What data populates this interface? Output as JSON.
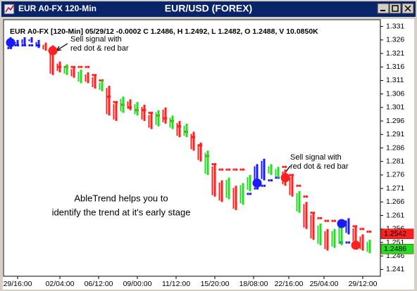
{
  "window": {
    "title": "EUR A0-FX 120-Min"
  },
  "chart_data": {
    "type": "ohlc",
    "title": "EUR/USD (FOREX)",
    "header": "EUR A0-FX [120-Min] 05/29/12  -0.0002 C 1.2486, H 1.2492, L 1.2482, O 1.2488, V 10.0850K",
    "bars": {
      "high": [
        1.327,
        1.326,
        1.327,
        1.327,
        1.326,
        1.325,
        1.324,
        1.318,
        1.317,
        1.316,
        1.315,
        1.314,
        1.313,
        1.311,
        1.309,
        1.303,
        1.305,
        1.304,
        1.303,
        1.302,
        1.299,
        1.3,
        1.301,
        1.298,
        1.296,
        1.295,
        1.292,
        1.288,
        1.285,
        1.28,
        1.274,
        1.275,
        1.272,
        1.273,
        1.276,
        1.28,
        1.282,
        1.28,
        1.279,
        1.278,
        1.276,
        1.27,
        1.266,
        1.262,
        1.258,
        1.256,
        1.256,
        1.258,
        1.26,
        1.257,
        1.254,
        1.252
      ],
      "low": [
        1.325,
        1.324,
        1.324,
        1.325,
        1.323,
        1.322,
        1.313,
        1.314,
        1.313,
        1.312,
        1.31,
        1.31,
        1.308,
        1.307,
        1.298,
        1.296,
        1.299,
        1.3,
        1.298,
        1.296,
        1.293,
        1.294,
        1.295,
        1.293,
        1.29,
        1.29,
        1.285,
        1.281,
        1.276,
        1.268,
        1.266,
        1.267,
        1.263,
        1.265,
        1.27,
        1.272,
        1.274,
        1.276,
        1.275,
        1.272,
        1.268,
        1.262,
        1.256,
        1.252,
        1.25,
        1.248,
        1.249,
        1.25,
        1.254,
        1.251,
        1.248,
        1.247
      ],
      "colors": [
        "#1a1aff",
        "#1a1aff",
        "#1a1aff",
        "#1a1aff",
        "#1a1aff",
        "#ff2020",
        "#ff2020",
        "#ff2020",
        "#22dd22",
        "#ff2020",
        "#22dd22",
        "#ff2020",
        "#ff2020",
        "#22dd22",
        "#ff2020",
        "#ff2020",
        "#22dd22",
        "#ff2020",
        "#22dd22",
        "#ff2020",
        "#ff2020",
        "#22dd22",
        "#ff2020",
        "#22dd22",
        "#ff2020",
        "#22dd22",
        "#ff2020",
        "#ff2020",
        "#22dd22",
        "#ff2020",
        "#ff2020",
        "#22dd22",
        "#ff2020",
        "#22dd22",
        "#22dd22",
        "#1a1aff",
        "#1a1aff",
        "#22dd22",
        "#22dd22",
        "#ff2020",
        "#ff2020",
        "#22dd22",
        "#ff2020",
        "#ff2020",
        "#22dd22",
        "#ff2020",
        "#22dd22",
        "#22dd22",
        "#1a1aff",
        "#ff2020",
        "#ff2020",
        "#22dd22"
      ]
    },
    "series": [
      {
        "color": "#ff2020",
        "values": [
          null,
          null,
          null,
          null,
          null,
          null,
          1.323,
          1.316,
          1.316,
          1.316,
          1.316,
          1.316,
          1.313,
          1.311,
          1.305,
          1.303,
          1.302,
          1.301,
          1.3,
          1.3,
          1.299,
          1.298,
          1.297,
          1.296,
          1.294,
          1.292,
          1.29,
          1.287,
          1.283,
          1.28,
          1.278,
          1.278,
          1.278,
          1.278,
          null,
          null,
          null,
          null,
          null,
          1.279,
          1.276,
          1.272,
          1.268,
          1.262,
          1.26,
          1.259,
          1.259,
          null,
          null,
          1.257,
          1.256,
          1.255
        ]
      },
      {
        "color": "#1a1aff",
        "values": [
          1.323,
          1.324,
          1.324,
          1.324,
          1.324,
          null,
          null,
          null,
          null,
          null,
          null,
          null,
          null,
          null,
          null,
          null,
          null,
          null,
          null,
          null,
          null,
          null,
          null,
          null,
          null,
          null,
          null,
          null,
          null,
          null,
          null,
          null,
          null,
          null,
          1.269,
          1.271,
          1.272,
          1.274,
          1.275,
          null,
          null,
          null,
          null,
          null,
          null,
          null,
          null,
          1.251,
          1.251,
          null,
          null,
          null
        ]
      }
    ],
    "signals": {
      "x": [
        0,
        6,
        35,
        39,
        47,
        49
      ],
      "y": [
        1.325,
        1.322,
        1.273,
        1.275,
        1.258,
        1.25
      ],
      "colors": [
        "#1a1aff",
        "#ff2020",
        "#1a1aff",
        "#ff2020",
        "#1a1aff",
        "#ff2020"
      ]
    },
    "price_marks": {
      "values": [
        1.2542,
        1.2486
      ],
      "colors": [
        "#ff2020",
        "#22dd22"
      ]
    },
    "annotations": [
      [
        "Sell signal with",
        "red dot & red bar"
      ],
      [
        "Sell signal with",
        "red dot & red bar"
      ],
      [
        "AbleTrend helps you to",
        "identify the trend at it's early stage"
      ]
    ],
    "xlim": [
      0,
      52
    ],
    "xticks": [
      {
        "value": 1.5,
        "label": "29/16:00"
      },
      {
        "value": 7.5,
        "label": "02/04:00"
      },
      {
        "value": 13,
        "label": "06/12:00"
      },
      {
        "value": 18.5,
        "label": "09/00:00"
      },
      {
        "value": 24,
        "label": "11/12:00"
      },
      {
        "value": 29.5,
        "label": "15/20:00"
      },
      {
        "value": 35,
        "label": "18/08:00"
      },
      {
        "value": 40,
        "label": "22/16:00"
      },
      {
        "value": 45,
        "label": "25/04:00"
      },
      {
        "value": 50.5,
        "label": "29/12:00"
      }
    ],
    "ylim": [
      1.2385,
      1.3335
    ],
    "yticks": [
      1.331,
      1.326,
      1.321,
      1.316,
      1.311,
      1.306,
      1.301,
      1.296,
      1.291,
      1.286,
      1.281,
      1.276,
      1.271,
      1.266,
      1.261,
      1.256,
      1.251,
      1.246,
      1.241
    ]
  }
}
